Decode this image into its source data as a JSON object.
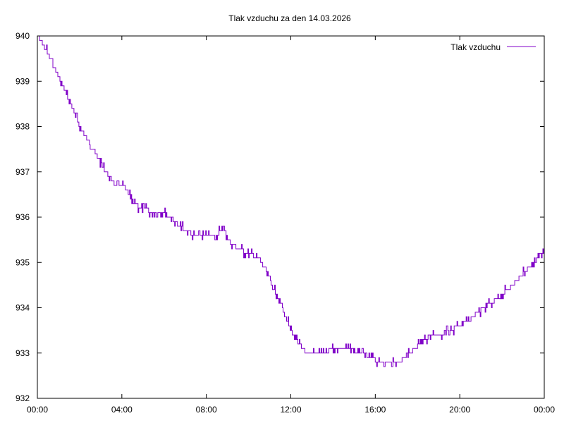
{
  "chart_data": {
    "type": "line",
    "title": "Tlak vzduchu za den 14.03.2026",
    "xlabel": "",
    "ylabel": "",
    "legend_position": "top-right",
    "grid": false,
    "x_tick_labels": [
      "00:00",
      "04:00",
      "08:00",
      "12:00",
      "16:00",
      "20:00",
      "00:00"
    ],
    "y_tick_labels": [
      "932",
      "933",
      "934",
      "935",
      "936",
      "937",
      "938",
      "939",
      "940"
    ],
    "xlim_hours": [
      0,
      24
    ],
    "ylim": [
      932,
      940
    ],
    "series": [
      {
        "name": "Tlak vzduchu",
        "color": "#8000c8",
        "x_hours": [
          0,
          0.25,
          0.5,
          0.75,
          1,
          1.5,
          2,
          2.5,
          3,
          3.5,
          3.75,
          4,
          4.25,
          4.5,
          5,
          5.5,
          6,
          6.5,
          7,
          7.5,
          8,
          8.5,
          8.8,
          9,
          9.5,
          10,
          10.5,
          11,
          11.5,
          12,
          12.5,
          13,
          13.5,
          14,
          14.5,
          15,
          15.5,
          16,
          16.5,
          17,
          17.5,
          18,
          18.5,
          19,
          19.5,
          20,
          20.5,
          21,
          21.5,
          22,
          22.5,
          23,
          23.5,
          24
        ],
        "values": [
          940,
          939.8,
          939.6,
          939.4,
          939.1,
          938.6,
          938,
          937.6,
          937.2,
          936.8,
          936.7,
          936.7,
          936.6,
          936.3,
          936.2,
          936.1,
          936.1,
          935.9,
          935.7,
          935.6,
          935.6,
          935.6,
          935.8,
          935.5,
          935.3,
          935.2,
          935.1,
          934.6,
          934.1,
          933.5,
          933.1,
          932.95,
          932.95,
          933.1,
          933.1,
          933.05,
          932.95,
          932.85,
          932.75,
          932.75,
          932.95,
          933.15,
          933.35,
          933.4,
          933.5,
          933.6,
          933.75,
          933.95,
          934.1,
          934.3,
          934.5,
          934.75,
          935.0,
          935.25
        ]
      }
    ]
  }
}
